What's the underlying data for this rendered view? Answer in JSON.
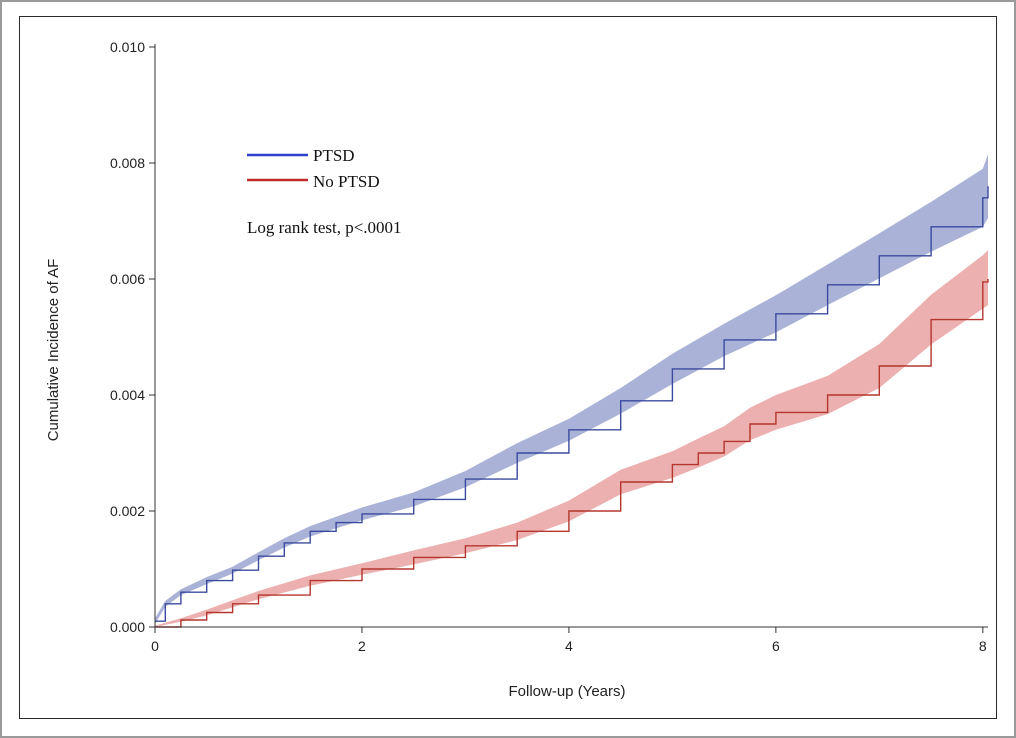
{
  "chart_data": {
    "type": "line",
    "xlabel": "Follow-up (Years)",
    "ylabel": "Cumulative Incidence of AF",
    "xlim": [
      0,
      8.05
    ],
    "ylim": [
      0,
      0.01
    ],
    "x_ticks": [
      0,
      2,
      4,
      6,
      8
    ],
    "x_tick_labels": [
      "0",
      "2",
      "4",
      "6",
      "8"
    ],
    "y_ticks": [
      0,
      0.002,
      0.004,
      0.006,
      0.008,
      0.01
    ],
    "y_tick_labels": [
      "0.000",
      "0.002",
      "0.004",
      "0.006",
      "0.008",
      "0.010"
    ],
    "grid": false,
    "legend_position": "top-left",
    "annotation": "Log rank test, p<.0001",
    "series": [
      {
        "name": "PTSD",
        "color": "#3b4a9e",
        "band_color": "#8d99c9",
        "x": [
          0,
          0.1,
          0.25,
          0.5,
          0.75,
          1.0,
          1.25,
          1.5,
          1.75,
          2.0,
          2.5,
          3.0,
          3.5,
          4.0,
          4.5,
          5.0,
          5.5,
          6.0,
          6.5,
          7.0,
          7.5,
          8.0,
          8.05
        ],
        "y": [
          0.0001,
          0.0004,
          0.0006,
          0.0008,
          0.00098,
          0.00122,
          0.00145,
          0.00165,
          0.0018,
          0.00195,
          0.0022,
          0.00255,
          0.003,
          0.0034,
          0.0039,
          0.00445,
          0.00495,
          0.0054,
          0.0059,
          0.0064,
          0.0069,
          0.0074,
          0.0076
        ],
        "lower": [
          5e-05,
          0.00035,
          0.00055,
          0.00074,
          0.00092,
          0.00115,
          0.00137,
          0.00156,
          0.0017,
          0.00184,
          0.00208,
          0.00241,
          0.00283,
          0.00321,
          0.00368,
          0.00419,
          0.00467,
          0.00508,
          0.00555,
          0.00601,
          0.00647,
          0.0069,
          0.00705
        ],
        "upper": [
          0.00015,
          0.00045,
          0.00065,
          0.00086,
          0.00104,
          0.00129,
          0.00153,
          0.00174,
          0.0019,
          0.00206,
          0.00232,
          0.00269,
          0.00317,
          0.00359,
          0.00412,
          0.00471,
          0.00523,
          0.00572,
          0.00625,
          0.00679,
          0.00733,
          0.0079,
          0.00815
        ]
      },
      {
        "name": "No PTSD",
        "color": "#b5362f",
        "band_color": "#e49694",
        "x": [
          0,
          0.25,
          0.5,
          0.75,
          1.0,
          1.5,
          2.0,
          2.5,
          3.0,
          3.5,
          4.0,
          4.5,
          5.0,
          5.25,
          5.5,
          5.75,
          6.0,
          6.5,
          7.0,
          7.5,
          8.0,
          8.05
        ],
        "y": [
          0.0,
          0.00012,
          0.00025,
          0.0004,
          0.00055,
          0.0008,
          0.001,
          0.0012,
          0.0014,
          0.00165,
          0.002,
          0.0025,
          0.0028,
          0.003,
          0.0032,
          0.0035,
          0.0037,
          0.004,
          0.0045,
          0.0053,
          0.00595,
          0.006
        ],
        "lower": [
          0.0,
          9e-05,
          0.0002,
          0.00034,
          0.00048,
          0.00071,
          0.0009,
          0.00108,
          0.00127,
          0.0015,
          0.00182,
          0.00229,
          0.00257,
          0.00275,
          0.00294,
          0.00322,
          0.0034,
          0.00367,
          0.00412,
          0.00487,
          0.00549,
          0.00555
        ],
        "upper": [
          2e-05,
          0.00015,
          0.0003,
          0.00046,
          0.00062,
          0.00089,
          0.0011,
          0.00132,
          0.00153,
          0.0018,
          0.00218,
          0.00271,
          0.00303,
          0.00325,
          0.00346,
          0.00378,
          0.004,
          0.00433,
          0.00488,
          0.00573,
          0.00641,
          0.0065
        ]
      }
    ]
  }
}
